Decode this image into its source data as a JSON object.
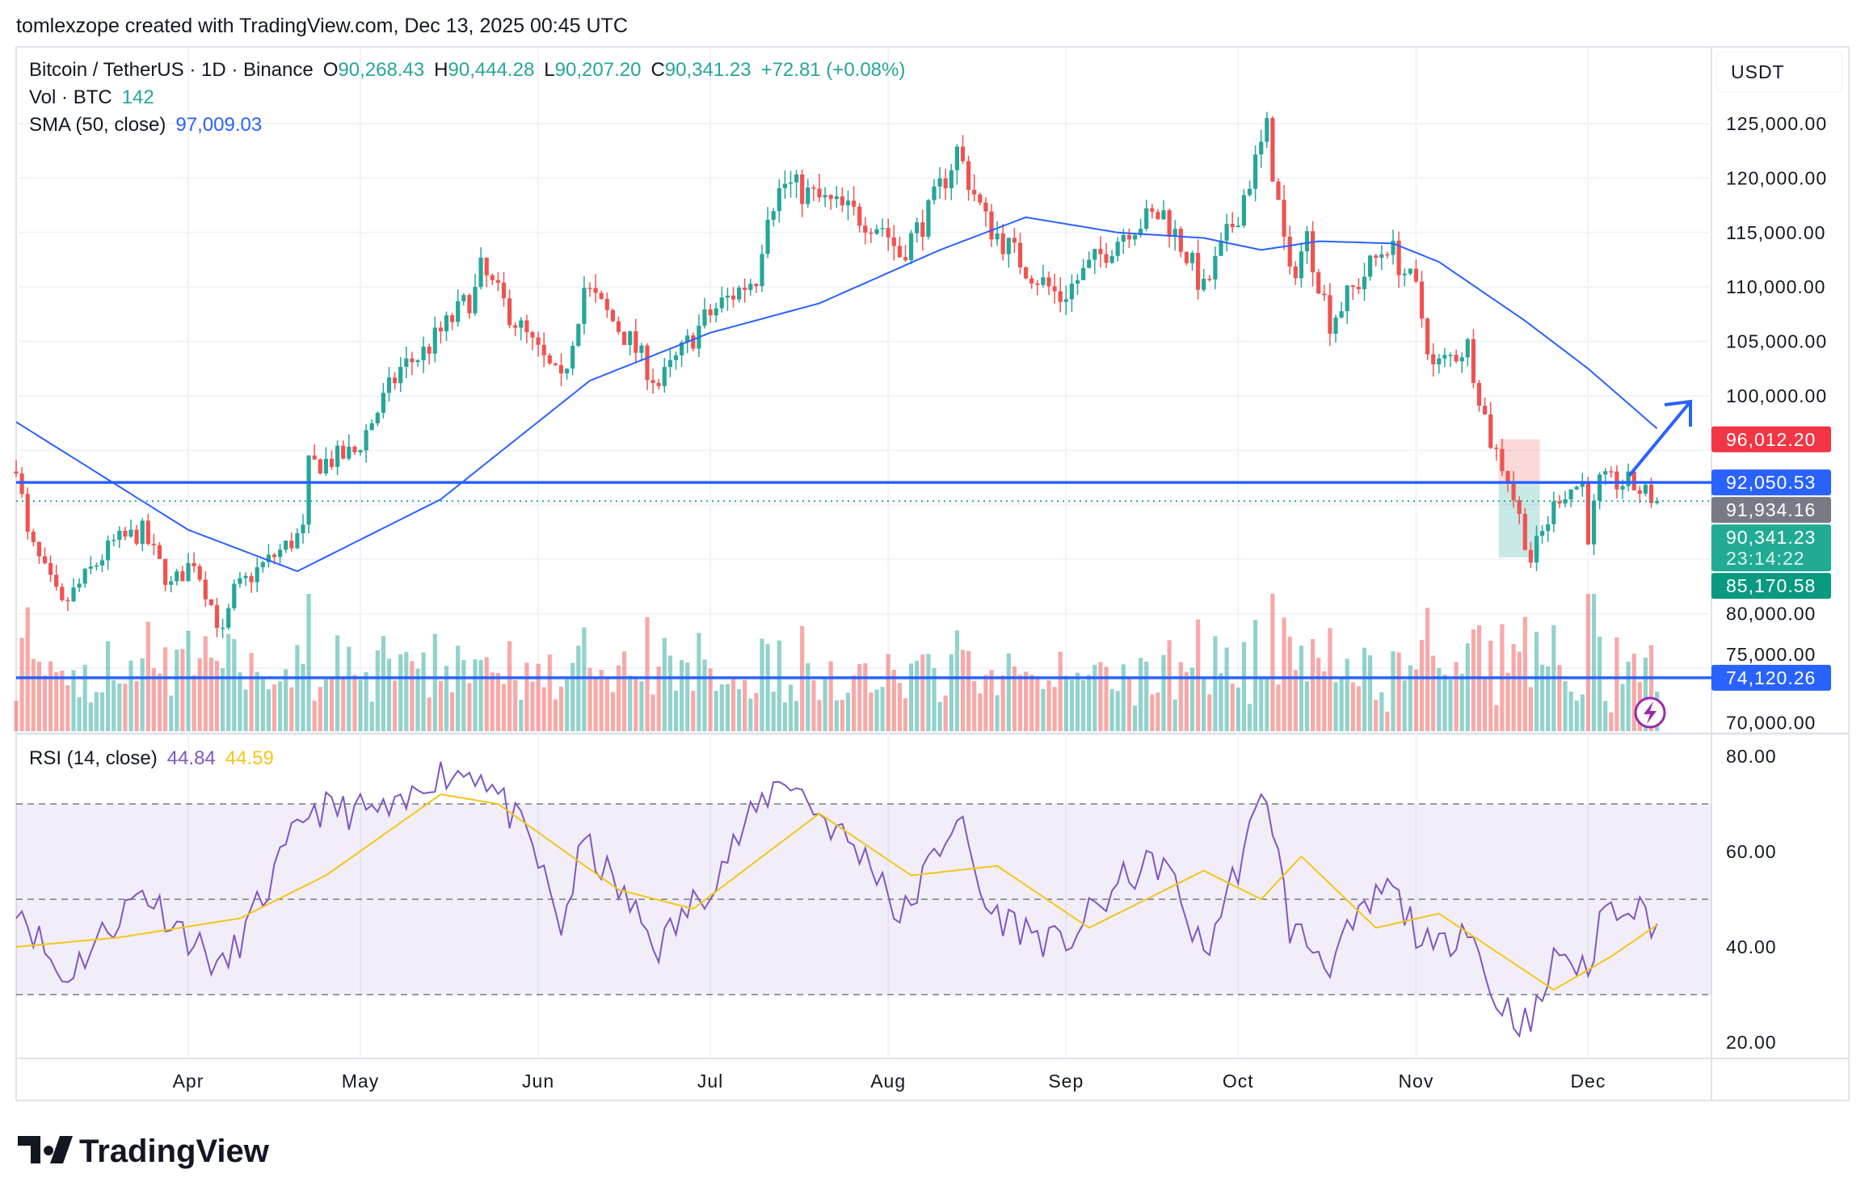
{
  "header": {
    "credit": "tomlexzope created with TradingView.com, Dec 13, 2025 00:45 UTC"
  },
  "legend": {
    "symbol": "Bitcoin / TetherUS · 1D · Binance",
    "o_label": "O",
    "o": "90,268.43",
    "h_label": "H",
    "h": "90,444.28",
    "l_label": "L",
    "l": "90,207.20",
    "c_label": "C",
    "c": "90,341.23",
    "change": "+72.81 (+0.08%)",
    "vol_label": "Vol · BTC",
    "vol": "142",
    "sma_label": "SMA (50, close)",
    "sma": "97,009.03",
    "rsi_label": "RSI (14, close)",
    "rsi": "44.84",
    "rsi_ma": "44.59"
  },
  "currency": "USDT",
  "price_ticks": [
    "125,000.00",
    "120,000.00",
    "115,000.00",
    "110,000.00",
    "105,000.00",
    "100,000.00",
    "80,000.00",
    "75,000.00",
    "70,000.00"
  ],
  "rsi_ticks": [
    "80.00",
    "60.00",
    "40.00",
    "20.00"
  ],
  "time_ticks": [
    "Apr",
    "May",
    "Jun",
    "Jul",
    "Aug",
    "Sep",
    "Oct",
    "Nov",
    "Dec"
  ],
  "tags": {
    "stop": "96,012.20",
    "line1": "92,050.53",
    "entry": "91,934.16",
    "last": "90,341.23",
    "countdown": "23:14:22",
    "target": "85,170.58",
    "line2": "74,120.26"
  },
  "logo": "TradingView",
  "colors": {
    "up": "#26a69a",
    "down": "#ef5350",
    "sma": "#2962ff",
    "rsi": "#7e57c2",
    "rsi_ma": "#f5c518",
    "hline": "#2962ff"
  },
  "chart_data": {
    "type": "candlestick",
    "interval": "1D",
    "ylim": [
      69000,
      127000
    ],
    "rsi_bands": [
      30,
      50,
      70
    ],
    "horizontal_lines": [
      92050.53,
      74120.26
    ],
    "position": {
      "stop": 96012.2,
      "entry": 91934.16,
      "target": 85170.58,
      "start": "2025-11-16",
      "end": "2025-11-22"
    },
    "close": [
      [
        "2025-03-02",
        94000
      ],
      [
        "2025-03-04",
        87000
      ],
      [
        "2025-03-10",
        80600
      ],
      [
        "2025-03-15",
        84000
      ],
      [
        "2025-03-19",
        86500
      ],
      [
        "2025-03-24",
        87500
      ],
      [
        "2025-03-29",
        82500
      ],
      [
        "2025-04-02",
        85000
      ],
      [
        "2025-04-07",
        78000
      ],
      [
        "2025-04-09",
        82000
      ],
      [
        "2025-04-13",
        84000
      ],
      [
        "2025-04-21",
        87500
      ],
      [
        "2025-04-22",
        93500
      ],
      [
        "2025-04-30",
        94800
      ],
      [
        "2025-05-08",
        102500
      ],
      [
        "2025-05-12",
        104000
      ],
      [
        "2025-05-21",
        109500
      ],
      [
        "2025-05-22",
        111500
      ],
      [
        "2025-05-31",
        104600
      ],
      [
        "2025-06-05",
        101000
      ],
      [
        "2025-06-09",
        110000
      ],
      [
        "2025-06-17",
        105000
      ],
      [
        "2025-06-22",
        101000
      ],
      [
        "2025-06-30",
        107000
      ],
      [
        "2025-07-03",
        108500
      ],
      [
        "2025-07-09",
        111000
      ],
      [
        "2025-07-11",
        117300
      ],
      [
        "2025-07-14",
        119500
      ],
      [
        "2025-07-20",
        118000
      ],
      [
        "2025-07-31",
        115600
      ],
      [
        "2025-08-03",
        113000
      ],
      [
        "2025-08-08",
        116700
      ],
      [
        "2025-08-13",
        122500
      ],
      [
        "2025-08-18",
        116000
      ],
      [
        "2025-08-25",
        111800
      ],
      [
        "2025-08-31",
        109000
      ],
      [
        "2025-09-05",
        111800
      ],
      [
        "2025-09-12",
        115600
      ],
      [
        "2025-09-18",
        116700
      ],
      [
        "2025-09-22",
        113000
      ],
      [
        "2025-09-25",
        109600
      ],
      [
        "2025-10-01",
        117000
      ],
      [
        "2025-10-06",
        124300
      ],
      [
        "2025-10-10",
        110700
      ],
      [
        "2025-10-13",
        114500
      ],
      [
        "2025-10-17",
        106900
      ],
      [
        "2025-10-27",
        114000
      ],
      [
        "2025-11-01",
        109600
      ],
      [
        "2025-11-04",
        102500
      ],
      [
        "2025-11-10",
        104600
      ],
      [
        "2025-11-14",
        95900
      ],
      [
        "2025-11-17",
        92600
      ],
      [
        "2025-11-21",
        85000
      ],
      [
        "2025-11-26",
        91000
      ],
      [
        "2025-11-30",
        92000
      ],
      [
        "2025-12-01",
        87300
      ],
      [
        "2025-12-03",
        92000
      ],
      [
        "2025-12-08",
        92000
      ],
      [
        "2025-12-13",
        90341.23
      ]
    ],
    "sma50": [
      [
        "2025-03-02",
        97600
      ],
      [
        "2025-04-01",
        87700
      ],
      [
        "2025-04-20",
        83900
      ],
      [
        "2025-05-15",
        90500
      ],
      [
        "2025-06-10",
        101400
      ],
      [
        "2025-07-01",
        105800
      ],
      [
        "2025-07-20",
        108500
      ],
      [
        "2025-08-10",
        113400
      ],
      [
        "2025-08-25",
        116400
      ],
      [
        "2025-09-10",
        115000
      ],
      [
        "2025-09-25",
        114500
      ],
      [
        "2025-10-05",
        113400
      ],
      [
        "2025-10-15",
        114200
      ],
      [
        "2025-10-28",
        114000
      ],
      [
        "2025-11-05",
        112300
      ],
      [
        "2025-11-20",
        106900
      ],
      [
        "2025-12-01",
        102500
      ],
      [
        "2025-12-13",
        97009.03
      ]
    ],
    "rsi": [
      [
        "2025-03-02",
        50
      ],
      [
        "2025-03-10",
        33
      ],
      [
        "2025-03-24",
        52
      ],
      [
        "2025-04-07",
        35
      ],
      [
        "2025-04-13",
        48
      ],
      [
        "2025-04-22",
        69
      ],
      [
        "2025-05-08",
        68
      ],
      [
        "2025-05-13",
        76
      ],
      [
        "2025-05-22",
        77
      ],
      [
        "2025-05-31",
        61
      ],
      [
        "2025-06-05",
        44
      ],
      [
        "2025-06-09",
        62
      ],
      [
        "2025-06-22",
        40
      ],
      [
        "2025-06-30",
        52
      ],
      [
        "2025-07-11",
        72
      ],
      [
        "2025-07-14",
        76
      ],
      [
        "2025-07-20",
        68
      ],
      [
        "2025-07-31",
        55
      ],
      [
        "2025-08-03",
        45
      ],
      [
        "2025-08-13",
        68
      ],
      [
        "2025-08-18",
        48
      ],
      [
        "2025-08-31",
        40
      ],
      [
        "2025-09-12",
        55
      ],
      [
        "2025-09-18",
        58
      ],
      [
        "2025-09-25",
        38
      ],
      [
        "2025-10-06",
        73
      ],
      [
        "2025-10-10",
        44
      ],
      [
        "2025-10-17",
        37
      ],
      [
        "2025-10-27",
        53
      ],
      [
        "2025-11-04",
        38
      ],
      [
        "2025-11-10",
        46
      ],
      [
        "2025-11-14",
        30
      ],
      [
        "2025-11-21",
        23
      ],
      [
        "2025-11-26",
        40
      ],
      [
        "2025-12-01",
        33
      ],
      [
        "2025-12-03",
        47
      ],
      [
        "2025-12-08",
        50
      ],
      [
        "2025-12-13",
        44.84
      ]
    ],
    "rsi_ma": [
      [
        "2025-03-02",
        40
      ],
      [
        "2025-03-20",
        42
      ],
      [
        "2025-04-10",
        46
      ],
      [
        "2025-04-25",
        55
      ],
      [
        "2025-05-15",
        72
      ],
      [
        "2025-05-25",
        70
      ],
      [
        "2025-06-15",
        52
      ],
      [
        "2025-06-28",
        48
      ],
      [
        "2025-07-20",
        68
      ],
      [
        "2025-08-05",
        55
      ],
      [
        "2025-08-20",
        57
      ],
      [
        "2025-09-05",
        44
      ],
      [
        "2025-09-25",
        56
      ],
      [
        "2025-10-05",
        50
      ],
      [
        "2025-10-12",
        59
      ],
      [
        "2025-10-25",
        44
      ],
      [
        "2025-11-05",
        47
      ],
      [
        "2025-11-25",
        31
      ],
      [
        "2025-12-05",
        38
      ],
      [
        "2025-12-13",
        44.59
      ]
    ]
  }
}
